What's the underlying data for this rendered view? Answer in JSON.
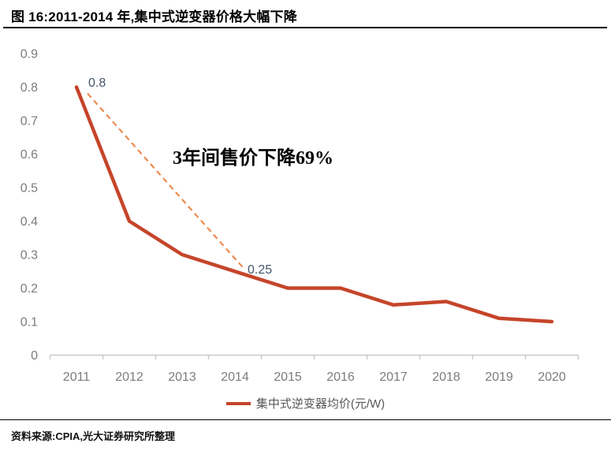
{
  "header": {
    "title": "图 16:2011-2014 年,集中式逆变器价格大幅下降"
  },
  "chart_data": {
    "type": "line",
    "title": "图 16:2011-2014 年,集中式逆变器价格大幅下降",
    "categories": [
      "2011",
      "2012",
      "2013",
      "2014",
      "2015",
      "2016",
      "2017",
      "2018",
      "2019",
      "2020"
    ],
    "series": [
      {
        "name": "集中式逆变器均价(元/W)",
        "values": [
          0.8,
          0.4,
          0.3,
          0.25,
          0.2,
          0.2,
          0.15,
          0.16,
          0.11,
          0.1
        ]
      }
    ],
    "xlabel": "",
    "ylabel": "",
    "ylim": [
      0,
      0.9
    ],
    "y_tick_labels": [
      "0.9",
      "0.8",
      "0.7",
      "0.6",
      "0.5",
      "0.4",
      "0.3",
      "0.2",
      "0.1",
      "0"
    ],
    "grid": false,
    "legend_position": "bottom",
    "annotations": [
      {
        "type": "text",
        "text": "3年间售价下降69%"
      },
      {
        "type": "data_label",
        "text": "0.8",
        "category": "2011",
        "value": 0.8
      },
      {
        "type": "data_label",
        "text": "0.25",
        "category": "2014",
        "value": 0.25
      },
      {
        "type": "dashed_connector",
        "from_category": "2011",
        "from_value": 0.8,
        "to_category": "2014",
        "to_value": 0.25
      }
    ]
  },
  "annotation": {
    "text": "3年间售价下降69%",
    "start_label": "0.8",
    "end_label": "0.25"
  },
  "legend": {
    "label": "集中式逆变器均价(元/W)"
  },
  "footer": {
    "source": "资料来源:CPIA,光大证券研究所整理"
  },
  "colors": {
    "line": "#C5452A",
    "dashed_line": "#EE8A50",
    "axis": "#C9C9C9",
    "axis_label": "#7C7C7C",
    "data_label": "#44546A",
    "legend_text": "#595959",
    "title_text": "#000000"
  }
}
